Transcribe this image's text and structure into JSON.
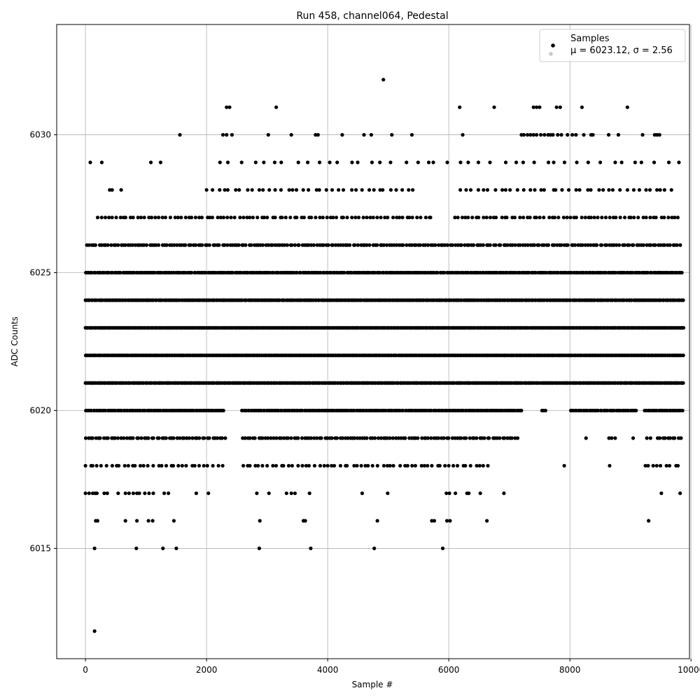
{
  "chart_data": {
    "type": "scatter",
    "title": "Run 458, channel064, Pedestal",
    "xlabel": "Sample #",
    "ylabel": "ADC Counts",
    "xlim": [
      -475,
      9975
    ],
    "ylim": [
      6011,
      6034
    ],
    "xticks": [
      0,
      2000,
      4000,
      6000,
      8000,
      10000
    ],
    "yticks": [
      6015,
      6020,
      6025,
      6030
    ],
    "grid": true,
    "legend_position": "top-right",
    "marker_color": "#000000",
    "series": [
      {
        "name": "Samples",
        "stats_label": "μ = 6023.12, σ = 2.56",
        "summary": {
          "mean": 6023.12,
          "sigma": 2.56,
          "count": 9900
        },
        "levels": [
          {
            "y": 6031,
            "x": [
              2330,
              2380,
              3150,
              6180,
              6750,
              7400,
              7450,
              7500,
              7780,
              7840,
              8200,
              8950
            ]
          },
          {
            "y": 6032,
            "x": [
              4920
            ]
          },
          {
            "y": 6030,
            "x": [
              1560,
              2270,
              2330,
              2420,
              3020,
              3400,
              3800,
              3840,
              4240,
              4600,
              4720,
              5060,
              5390,
              6230,
              7200,
              7240,
              7300,
              7350,
              7400,
              7450,
              7520,
              7580,
              7640,
              7680,
              7720,
              7800,
              7860,
              7960,
              8040,
              8100,
              8230,
              8350,
              8380,
              8640,
              8800,
              9200,
              9400,
              9440,
              9480
            ]
          },
          {
            "y": 6012,
            "x": [
              150
            ]
          },
          {
            "y": 6015,
            "x": [
              150,
              840,
              1280,
              1500,
              2870,
              3720,
              4770,
              5900
            ]
          },
          {
            "y": 6016,
            "x": [
              170,
              200,
              660,
              850,
              1040,
              1110,
              1460,
              2880,
              3600,
              3630,
              4820,
              5720,
              5760,
              5970,
              6020,
              6630,
              9300
            ]
          },
          {
            "y": 6017,
            "x": [
              0,
              60,
              120,
              160,
              190,
              310,
              360,
              540,
              660,
              720,
              790,
              850,
              890,
              980,
              1050,
              1120,
              1300,
              1370,
              1830,
              2030,
              2830,
              3030,
              3320,
              3400,
              3460,
              3700,
              4570,
              4990,
              5960,
              6010,
              6110,
              6300,
              6330,
              6520,
              6910,
              9510,
              9820
            ]
          }
        ],
        "bands": [
          {
            "y": 6029,
            "from": 2200,
            "to": 9800,
            "step": 180,
            "extra": [
              80,
              270,
              1080,
              1240
            ]
          },
          {
            "y": 6028,
            "from": 2000,
            "to": 9750,
            "step": 95,
            "extra": [
              400,
              440,
              590
            ],
            "gaps": [
              [
                5500,
                6140
              ]
            ]
          },
          {
            "y": 6027,
            "from": 200,
            "to": 9850,
            "step": 60,
            "gaps": [
              [
                5770,
                6060
              ]
            ]
          },
          {
            "y": 6026,
            "from": 20,
            "to": 9850,
            "step": 40
          },
          {
            "y": 6025,
            "from": 0,
            "to": 9860,
            "step": 28
          },
          {
            "y": 6024,
            "from": 0,
            "to": 9880,
            "step": 24
          },
          {
            "y": 6023,
            "from": 0,
            "to": 9880,
            "step": 20
          },
          {
            "y": 6022,
            "from": 0,
            "to": 9880,
            "step": 20
          },
          {
            "y": 6021,
            "from": 0,
            "to": 9880,
            "step": 22
          },
          {
            "y": 6020,
            "from": 0,
            "to": 9860,
            "step": 26,
            "gaps": [
              [
                2300,
                2560
              ],
              [
                7200,
                7520
              ],
              [
                7620,
                8000
              ],
              [
                9120,
                9200
              ]
            ]
          },
          {
            "y": 6019,
            "from": 0,
            "to": 9860,
            "step": 42,
            "gaps": [
              [
                2330,
                2580
              ],
              [
                7140,
                8250
              ],
              [
                8310,
                8640
              ],
              [
                8760,
                9000
              ],
              [
                9080,
                9270
              ],
              [
                9350,
                9440
              ]
            ]
          },
          {
            "y": 6018,
            "from": 0,
            "to": 9830,
            "step": 70,
            "gaps": [
              [
                2270,
                2560
              ],
              [
                6740,
                7700
              ],
              [
                7740,
                7880
              ],
              [
                7920,
                8640
              ],
              [
                8720,
                8920
              ],
              [
                8960,
                9200
              ]
            ]
          }
        ]
      }
    ]
  }
}
